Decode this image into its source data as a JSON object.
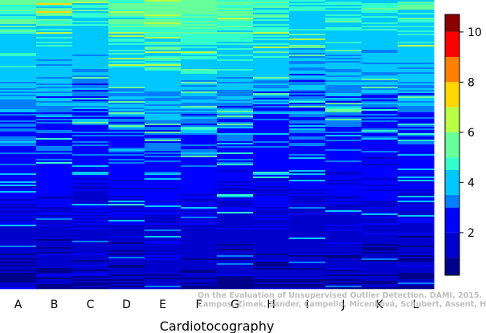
{
  "chart_data": {
    "type": "heatmap",
    "title": "",
    "xlabel": "Cardiotocography",
    "ylabel": "",
    "categories": [
      "A",
      "B",
      "C",
      "D",
      "E",
      "F",
      "G",
      "H",
      "I",
      "J",
      "K",
      "L"
    ],
    "value_range": [
      0.3,
      10.7
    ],
    "colorbar": {
      "ticks": [
        2,
        4,
        6,
        8,
        10
      ],
      "bins": [
        {
          "from": 0.3,
          "to": 1.0,
          "color": "#00008b"
        },
        {
          "from": 1.0,
          "to": 2.0,
          "color": "#0000cd"
        },
        {
          "from": 2.0,
          "to": 3.0,
          "color": "#0000ff"
        },
        {
          "from": 3.0,
          "to": 3.5,
          "color": "#0080ff"
        },
        {
          "from": 3.5,
          "to": 4.5,
          "color": "#00c8ff"
        },
        {
          "from": 4.5,
          "to": 5.0,
          "color": "#33ffcc"
        },
        {
          "from": 5.0,
          "to": 6.0,
          "color": "#66ff99"
        },
        {
          "from": 6.0,
          "to": 7.0,
          "color": "#b8ff46"
        },
        {
          "from": 7.0,
          "to": 8.0,
          "color": "#ffd700"
        },
        {
          "from": 8.0,
          "to": 9.0,
          "color": "#ff8000"
        },
        {
          "from": 9.0,
          "to": 10.0,
          "color": "#ff0000"
        },
        {
          "from": 10.0,
          "to": 10.7,
          "color": "#8b0000"
        }
      ]
    },
    "column_profiles": [
      {
        "category": "A",
        "top": 5.2,
        "bottom": 0.9
      },
      {
        "category": "B",
        "top": 5.1,
        "bottom": 0.9
      },
      {
        "category": "C",
        "top": 4.9,
        "bottom": 0.9
      },
      {
        "category": "D",
        "top": 5.4,
        "bottom": 0.9
      },
      {
        "category": "E",
        "top": 5.8,
        "bottom": 0.9
      },
      {
        "category": "F",
        "top": 5.6,
        "bottom": 0.9
      },
      {
        "category": "G",
        "top": 5.3,
        "bottom": 0.9
      },
      {
        "category": "H",
        "top": 5.0,
        "bottom": 0.9
      },
      {
        "category": "I",
        "top": 4.6,
        "bottom": 1.1
      },
      {
        "category": "J",
        "top": 4.8,
        "bottom": 1.1
      },
      {
        "category": "K",
        "top": 4.7,
        "bottom": 0.9
      },
      {
        "category": "L",
        "top": 4.9,
        "bottom": 0.9
      }
    ]
  },
  "watermark": {
    "line1": "On the Evaluation of Unsupervised Outlier Detection. DAMI, 2015.",
    "line2": "Campos, Zimek, Sander, Campello, Micenková, Schubert, Assent, Houle"
  }
}
